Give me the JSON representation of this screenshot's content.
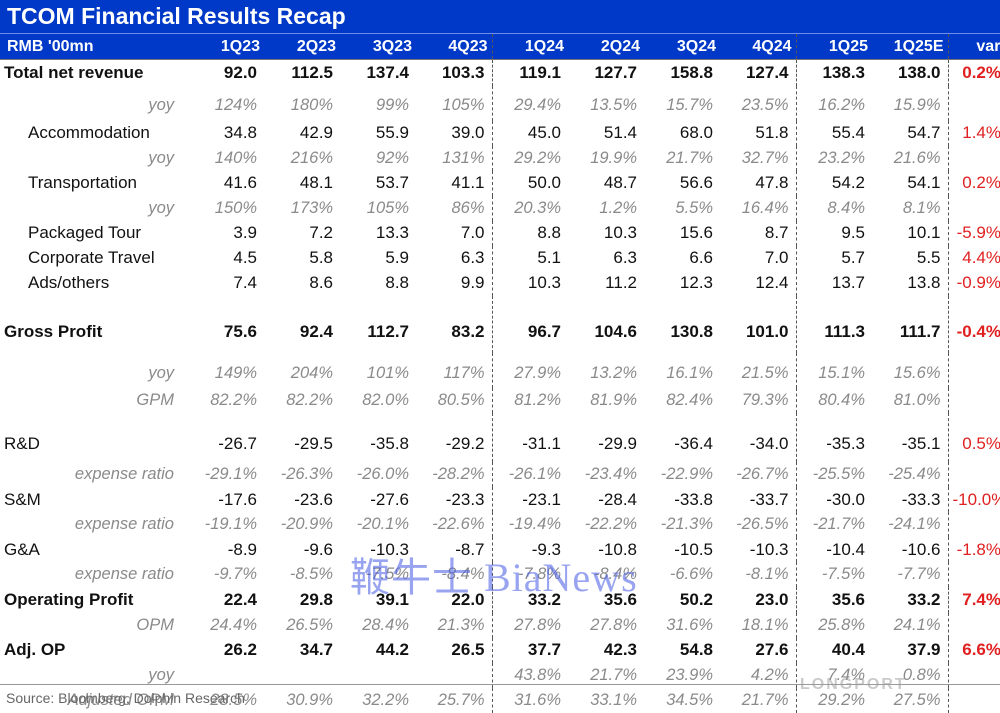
{
  "title": "TCOM Financial Results Recap",
  "headers": [
    "RMB '00mn",
    "1Q23",
    "2Q23",
    "3Q23",
    "4Q23",
    "1Q24",
    "2Q24",
    "3Q24",
    "4Q24",
    "1Q25",
    "1Q25E",
    "var."
  ],
  "rows": [
    {
      "kind": "main",
      "gap": 0,
      "cells": [
        "Total net revenue",
        "92.0",
        "112.5",
        "137.4",
        "103.3",
        "119.1",
        "127.7",
        "158.8",
        "127.4",
        "138.3",
        "138.0",
        "0.2%"
      ]
    },
    {
      "kind": "ratio",
      "gap": 5,
      "cells": [
        "yoy",
        "124%",
        "180%",
        "99%",
        "105%",
        "29.4%",
        "13.5%",
        "15.7%",
        "23.5%",
        "16.2%",
        "15.9%",
        ""
      ]
    },
    {
      "kind": "sub",
      "gap": 0,
      "cells": [
        "Accommodation",
        "34.8",
        "42.9",
        "55.9",
        "39.0",
        "45.0",
        "51.4",
        "68.0",
        "51.8",
        "55.4",
        "54.7",
        "1.4%"
      ]
    },
    {
      "kind": "ratio",
      "gap": 0,
      "cells": [
        "yoy",
        "140%",
        "216%",
        "92%",
        "131%",
        "29.2%",
        "19.9%",
        "21.7%",
        "32.7%",
        "23.2%",
        "21.6%",
        ""
      ]
    },
    {
      "kind": "sub",
      "gap": 0,
      "cells": [
        "Transportation",
        "41.6",
        "48.1",
        "53.7",
        "41.1",
        "50.0",
        "48.7",
        "56.6",
        "47.8",
        "54.2",
        "54.1",
        "0.2%"
      ]
    },
    {
      "kind": "ratio",
      "gap": 0,
      "cells": [
        "yoy",
        "150%",
        "173%",
        "105%",
        "86%",
        "20.3%",
        "1.2%",
        "5.5%",
        "16.4%",
        "8.4%",
        "8.1%",
        ""
      ]
    },
    {
      "kind": "sub",
      "gap": 0,
      "cells": [
        "Packaged Tour",
        "3.9",
        "7.2",
        "13.3",
        "7.0",
        "8.8",
        "10.3",
        "15.6",
        "8.7",
        "9.5",
        "10.1",
        "-5.9%"
      ]
    },
    {
      "kind": "sub",
      "gap": 0,
      "cells": [
        "Corporate Travel",
        "4.5",
        "5.8",
        "5.9",
        "6.3",
        "5.1",
        "6.3",
        "6.6",
        "7.0",
        "5.7",
        "5.5",
        "4.4%"
      ]
    },
    {
      "kind": "sub",
      "gap": 0,
      "cells": [
        "Ads/others",
        "7.4",
        "8.6",
        "8.8",
        "9.9",
        "10.3",
        "11.2",
        "12.3",
        "12.4",
        "13.7",
        "13.8",
        "-0.9%"
      ]
    },
    {
      "kind": "main",
      "gap": 16,
      "cells": [
        "Gross Profit",
        "75.6",
        "92.4",
        "112.7",
        "83.2",
        "96.7",
        "104.6",
        "130.8",
        "101.0",
        "111.3",
        "111.7",
        "-0.4%"
      ]
    },
    {
      "kind": "ratio",
      "gap": 5,
      "cells": [
        "yoy",
        "149%",
        "204%",
        "101%",
        "117%",
        "27.9%",
        "13.2%",
        "16.1%",
        "21.5%",
        "15.1%",
        "15.6%",
        ""
      ]
    },
    {
      "kind": "ratio",
      "gap": 0,
      "cells": [
        "GPM",
        "82.2%",
        "82.2%",
        "82.0%",
        "80.5%",
        "81.2%",
        "81.9%",
        "82.4%",
        "79.3%",
        "80.4%",
        "81.0%",
        ""
      ]
    },
    {
      "kind": "plain",
      "gap": 12,
      "cells": [
        "R&D",
        "-26.7",
        "-29.5",
        "-35.8",
        "-29.2",
        "-31.1",
        "-29.9",
        "-36.4",
        "-34.0",
        "-35.3",
        "-35.1",
        "0.5%"
      ]
    },
    {
      "kind": "ratio",
      "gap": 0,
      "cells": [
        "expense ratio",
        "-29.1%",
        "-26.3%",
        "-26.0%",
        "-28.2%",
        "-26.1%",
        "-23.4%",
        "-22.9%",
        "-26.7%",
        "-25.5%",
        "-25.4%",
        ""
      ]
    },
    {
      "kind": "plain",
      "gap": 0,
      "cells": [
        "S&M",
        "-17.6",
        "-23.6",
        "-27.6",
        "-23.3",
        "-23.1",
        "-28.4",
        "-33.8",
        "-33.7",
        "-30.0",
        "-33.3",
        "-10.0%"
      ]
    },
    {
      "kind": "ratio",
      "gap": 0,
      "cells": [
        "expense ratio",
        "-19.1%",
        "-20.9%",
        "-20.1%",
        "-22.6%",
        "-19.4%",
        "-22.2%",
        "-21.3%",
        "-26.5%",
        "-21.7%",
        "-24.1%",
        ""
      ]
    },
    {
      "kind": "plain",
      "gap": 0,
      "cells": [
        "G&A",
        "-8.9",
        "-9.6",
        "-10.3",
        "-8.7",
        "-9.3",
        "-10.8",
        "-10.5",
        "-10.3",
        "-10.4",
        "-10.6",
        "-1.8%"
      ]
    },
    {
      "kind": "ratio",
      "gap": 0,
      "cells": [
        "expense ratio",
        "-9.7%",
        "-8.5%",
        "-7.5%",
        "-8.4%",
        "-7.8%",
        "-8.4%",
        "-6.6%",
        "-8.1%",
        "-7.5%",
        "-7.7%",
        ""
      ]
    },
    {
      "kind": "main",
      "gap": 0,
      "cells": [
        "Operating Profit",
        "22.4",
        "29.8",
        "39.1",
        "22.0",
        "33.2",
        "35.6",
        "50.2",
        "23.0",
        "35.6",
        "33.2",
        "7.4%"
      ]
    },
    {
      "kind": "ratio",
      "gap": 0,
      "cells": [
        "OPM",
        "24.4%",
        "26.5%",
        "28.4%",
        "21.3%",
        "27.8%",
        "27.8%",
        "31.6%",
        "18.1%",
        "25.8%",
        "24.1%",
        ""
      ]
    },
    {
      "kind": "main",
      "gap": 0,
      "cells": [
        "Adj. OP",
        "26.2",
        "34.7",
        "44.2",
        "26.5",
        "37.7",
        "42.3",
        "54.8",
        "27.6",
        "40.4",
        "37.9",
        "6.6%"
      ]
    },
    {
      "kind": "ratio",
      "gap": 0,
      "cells": [
        "yoy",
        "",
        "",
        "",
        "",
        "43.8%",
        "21.7%",
        "23.9%",
        "4.2%",
        "7.4%",
        "0.8%",
        ""
      ]
    },
    {
      "kind": "ratio",
      "gap": 0,
      "cells": [
        "Adjusted OPM",
        "28.5%",
        "30.9%",
        "32.2%",
        "25.7%",
        "31.6%",
        "33.1%",
        "34.5%",
        "21.7%",
        "29.2%",
        "27.5%",
        ""
      ]
    }
  ],
  "source": "Source:  Bloomberg, Dolphin Research",
  "watermark": "鞭牛士 BiaNews",
  "watermark2": "LONGPORT",
  "colors": {
    "header_bg": "#0038c8",
    "var_text": "#e02020",
    "ratio_text": "#8a8a8a"
  }
}
